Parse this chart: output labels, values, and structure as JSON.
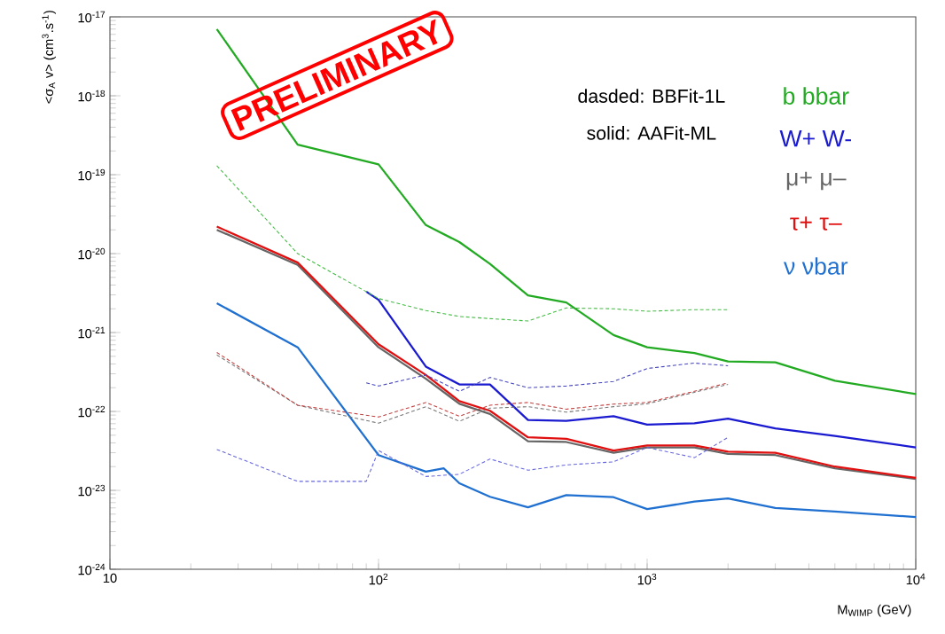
{
  "chart_data": {
    "type": "line",
    "xlabel": "M$_{WIMP}$ (GeV)",
    "ylabel": "<σ$_{A}$ v> (cm$^{3}$.s$^{-1}$)",
    "log": "xy",
    "xlim": [
      10,
      10000
    ],
    "ylim": [
      1e-24,
      1e-17
    ],
    "xticks": [
      10,
      {
        "value": 100,
        "label": "10$^{2}$"
      },
      {
        "value": 1000,
        "label": "10$^{3}$"
      },
      {
        "value": 10000,
        "label": "10$^{4}$"
      }
    ],
    "yticks": [
      {
        "value": 1e-24,
        "label": "10$^{-24}$"
      },
      {
        "value": 1e-23,
        "label": "10$^{-23}$"
      },
      {
        "value": 1e-22,
        "label": "10$^{-22}$"
      },
      {
        "value": 1e-21,
        "label": "10$^{-21}$"
      },
      {
        "value": 1e-20,
        "label": "10$^{-20}$"
      },
      {
        "value": 1e-19,
        "label": "10$^{-19}$"
      },
      {
        "value": 1e-18,
        "label": "10$^{-18}$"
      },
      {
        "value": 1e-17,
        "label": "10$^{-17}$"
      }
    ],
    "grid": false,
    "marker": "none",
    "legend": "top right",
    "annotations": [
      "dasded: BBFit-1L",
      "solid: AAFit-ML",
      "PRELIMINARY"
    ],
    "series": [
      {
        "name": "b bbar",
        "color": "#22aa22",
        "line_style": "solid",
        "x": [
          25,
          50,
          100,
          150,
          200,
          260,
          360,
          500,
          750,
          1000,
          1500,
          2000,
          3000,
          5000,
          10000
        ],
        "values": [
          7e-18,
          2.4e-19,
          1.35e-19,
          2.3e-20,
          1.4e-20,
          7.4e-21,
          2.95e-21,
          2.4e-21,
          9.3e-22,
          6.5e-22,
          5.5e-22,
          4.3e-22,
          4.2e-22,
          2.45e-22,
          1.66e-22
        ]
      },
      {
        "name": "W+ W-",
        "color": "#1a1ad0",
        "line_style": "solid",
        "x": [
          90,
          100,
          150,
          200,
          260,
          360,
          500,
          750,
          1000,
          1500,
          2000,
          3000,
          5000,
          10000
        ],
        "values": [
          3.3e-21,
          2.6e-21,
          3.7e-22,
          2.2e-22,
          2.2e-22,
          7.8e-23,
          7.6e-23,
          8.7e-23,
          6.8e-23,
          7.1e-23,
          8.1e-23,
          6.1e-23,
          4.9e-23,
          3.5e-23
        ]
      },
      {
        "name": "μ+ μ–",
        "color": "#666666",
        "line_style": "solid",
        "x": [
          25,
          50,
          100,
          150,
          200,
          260,
          360,
          500,
          750,
          1000,
          1500,
          2000,
          3000,
          5000,
          10000
        ],
        "values": [
          2e-20,
          7.2e-21,
          6.5e-22,
          2.6e-22,
          1.25e-22,
          9.3e-23,
          4.2e-23,
          4.1e-23,
          3e-23,
          3.5e-23,
          3.5e-23,
          2.9e-23,
          2.8e-23,
          1.9e-23,
          1.4e-23
        ]
      },
      {
        "name": "τ+ τ–",
        "color": "#e01010",
        "line_style": "solid",
        "x": [
          25,
          50,
          100,
          150,
          200,
          260,
          360,
          500,
          750,
          1000,
          1500,
          2000,
          3000,
          5000,
          10000
        ],
        "values": [
          2.2e-20,
          7.7e-21,
          7.1e-22,
          2.9e-22,
          1.35e-22,
          1.02e-22,
          4.7e-23,
          4.5e-23,
          3.2e-23,
          3.7e-23,
          3.7e-23,
          3.1e-23,
          3e-23,
          2e-23,
          1.44e-23
        ]
      },
      {
        "name": "ν νbar",
        "color": "#1f70d0",
        "line_style": "solid",
        "x": [
          25,
          50,
          100,
          150,
          175,
          200,
          260,
          360,
          500,
          750,
          1000,
          1500,
          2000,
          3000,
          5000,
          10000
        ],
        "values": [
          2.35e-21,
          6.5e-22,
          2.8e-23,
          1.73e-23,
          1.9e-23,
          1.23e-23,
          8.3e-24,
          6.1e-24,
          8.7e-24,
          8.2e-24,
          5.8e-24,
          7.2e-24,
          7.9e-24,
          6e-24,
          5.4e-24,
          4.6e-24
        ]
      },
      {
        "color": "#44bb44",
        "line_style": "dashed",
        "x": [
          25,
          50,
          100,
          150,
          200,
          260,
          360,
          500,
          750,
          1000,
          1500,
          2000
        ],
        "values": [
          1.3e-19,
          1e-20,
          2.7e-21,
          1.9e-21,
          1.6e-21,
          1.5e-21,
          1.4e-21,
          2.05e-21,
          2e-21,
          1.86e-21,
          1.95e-21,
          1.95e-21
        ]
      },
      {
        "color": "#4444bb",
        "line_style": "dashed",
        "x": [
          90,
          100,
          150,
          200,
          260,
          360,
          500,
          750,
          1000,
          1500,
          2000
        ],
        "values": [
          2.3e-22,
          2.1e-22,
          2.9e-22,
          1.8e-22,
          2.7e-22,
          2e-22,
          2.1e-22,
          2.4e-22,
          3.5e-22,
          4.1e-22,
          3.8e-22
        ]
      },
      {
        "color": "#777777",
        "line_style": "dashed",
        "x": [
          25,
          50,
          100,
          150,
          200,
          260,
          360,
          500,
          750,
          1000,
          1500,
          2000
        ],
        "values": [
          5.2e-22,
          1.2e-22,
          7.1e-23,
          1.15e-22,
          7.5e-23,
          1.1e-22,
          1.15e-22,
          9.8e-23,
          1.15e-22,
          1.25e-22,
          1.75e-22,
          2.2e-22
        ]
      },
      {
        "color": "#c04040",
        "line_style": "dashed",
        "x": [
          25,
          50,
          100,
          150,
          200,
          260,
          360,
          500,
          750,
          1000,
          1500,
          2000
        ],
        "values": [
          5.6e-22,
          1.2e-22,
          8.5e-23,
          1.3e-22,
          8.7e-23,
          1.2e-22,
          1.3e-22,
          1.07e-22,
          1.24e-22,
          1.3e-22,
          1.8e-22,
          2.3e-22
        ]
      },
      {
        "color": "#6666dd",
        "line_style": "dashed",
        "x": [
          25,
          50,
          90,
          100,
          150,
          200,
          260,
          360,
          500,
          750,
          1000,
          1500,
          2000
        ],
        "values": [
          3.3e-23,
          1.3e-23,
          1.3e-23,
          3.2e-23,
          1.5e-23,
          1.6e-23,
          2.5e-23,
          1.8e-23,
          2.1e-23,
          2.3e-23,
          3.5e-23,
          2.6e-23,
          4.7e-23
        ]
      }
    ]
  }
}
